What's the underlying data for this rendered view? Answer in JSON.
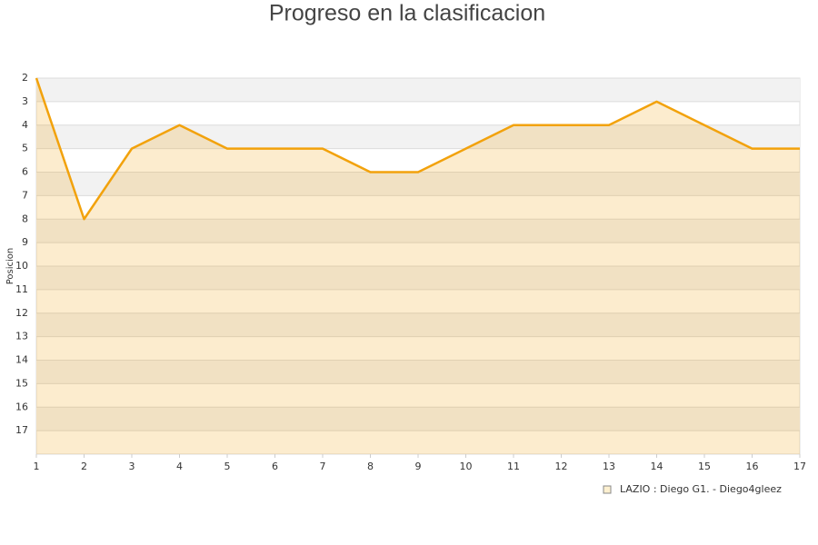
{
  "chart_data": {
    "type": "area",
    "title": "Progreso en la clasificacion",
    "y_label": "Posicion",
    "x": [
      1,
      2,
      3,
      4,
      5,
      6,
      7,
      8,
      9,
      10,
      11,
      12,
      13,
      14,
      15,
      16,
      17
    ],
    "series": [
      {
        "name": "LAZIO : Diego G1. - Diego4gleez",
        "color": "#f2a20c",
        "values": [
          2,
          8,
          5,
          4,
          5,
          5,
          5,
          6,
          6,
          5,
          4,
          4,
          4,
          3,
          4,
          5,
          5
        ]
      }
    ],
    "xlim": [
      1,
      17
    ],
    "xticks": [
      1,
      2,
      3,
      4,
      5,
      6,
      7,
      8,
      9,
      10,
      11,
      12,
      13,
      14,
      15,
      16,
      17
    ],
    "ylim": [
      18,
      2
    ],
    "yticks": [
      2,
      3,
      4,
      5,
      6,
      7,
      8,
      9,
      10,
      11,
      12,
      13,
      14,
      15,
      16,
      17
    ],
    "grid": true
  }
}
